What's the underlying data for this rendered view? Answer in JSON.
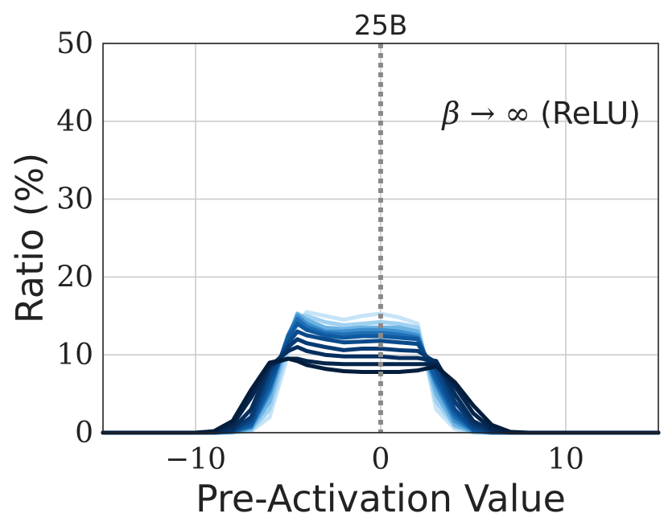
{
  "chart_data": {
    "type": "line",
    "title": "25B",
    "xlabel": "Pre-Activation Value",
    "ylabel": "Ratio (%)",
    "xlim": [
      -15,
      15
    ],
    "ylim": [
      0,
      50
    ],
    "xticks": [
      -10,
      0,
      10
    ],
    "yticks": [
      0,
      10,
      20,
      30,
      40,
      50
    ],
    "xtick_labels": [
      "−10",
      "0",
      "10"
    ],
    "ytick_labels": [
      "0",
      "10",
      "20",
      "30",
      "40",
      "50"
    ],
    "grid": true,
    "vline": {
      "x": 0,
      "style": "dotted",
      "color": "#8a8a8a"
    },
    "annotation": {
      "math": "β → ∞",
      "text": " (ReLU)"
    },
    "colors": [
      "#c6e4f7",
      "#9fd0f0",
      "#6cb3e3",
      "#3f90d0",
      "#2170b5",
      "#0f5aa0",
      "#0b4a8a",
      "#083b73",
      "#062f5e",
      "#05254c",
      "#041d3d"
    ],
    "x": [
      -15,
      -12,
      -10,
      -9,
      -8,
      -7,
      -6,
      -5,
      -4.5,
      -4,
      -3,
      -2,
      -1,
      0,
      1,
      2,
      3,
      4,
      5,
      6,
      7,
      8,
      9,
      10,
      12,
      15
    ],
    "series": [
      {
        "values": [
          0,
          0,
          0,
          0,
          0,
          0.2,
          2,
          10,
          14,
          15.5,
          15,
          14.5,
          15,
          15.3,
          14.8,
          14,
          3,
          0.5,
          0,
          0,
          0,
          0,
          0,
          0,
          0,
          0
        ]
      },
      {
        "values": [
          0,
          0,
          0,
          0,
          0,
          0.3,
          3,
          11,
          15,
          15,
          14.2,
          13.8,
          14,
          14.2,
          14,
          13.5,
          4,
          0.8,
          0.1,
          0,
          0,
          0,
          0,
          0,
          0,
          0
        ]
      },
      {
        "values": [
          0,
          0,
          0,
          0,
          0.1,
          0.5,
          4,
          12,
          15.3,
          14.5,
          13.5,
          13.3,
          13.5,
          13.5,
          13.5,
          13,
          5,
          1,
          0.1,
          0,
          0,
          0,
          0,
          0,
          0,
          0
        ]
      },
      {
        "values": [
          0,
          0,
          0,
          0,
          0.1,
          0.7,
          5,
          12.5,
          15,
          14,
          13,
          13,
          13.2,
          13.2,
          13,
          12.5,
          6,
          1.5,
          0.2,
          0,
          0,
          0,
          0,
          0,
          0,
          0
        ]
      },
      {
        "values": [
          0,
          0,
          0,
          0,
          0.1,
          0.8,
          5.5,
          12.5,
          14.6,
          13.6,
          12.8,
          12.6,
          12.8,
          12.8,
          12.6,
          12.2,
          6.5,
          2,
          0.3,
          0,
          0,
          0,
          0,
          0,
          0,
          0
        ]
      },
      {
        "values": [
          0,
          0,
          0,
          0,
          0.2,
          1,
          6,
          12.2,
          14,
          13.2,
          12.5,
          12.2,
          12.4,
          12.4,
          12.2,
          12,
          7,
          2.5,
          0.4,
          0,
          0,
          0,
          0,
          0,
          0,
          0
        ]
      },
      {
        "values": [
          0,
          0,
          0,
          0,
          0.2,
          1.5,
          7,
          11.5,
          13,
          12.5,
          12,
          11.6,
          11.7,
          11.8,
          11.6,
          11.4,
          8,
          3,
          0.6,
          0.1,
          0,
          0,
          0,
          0,
          0,
          0
        ]
      },
      {
        "values": [
          0,
          0,
          0,
          0,
          0.3,
          2,
          8,
          11,
          12,
          11.5,
          11,
          10.6,
          10.8,
          10.8,
          10.6,
          10.5,
          9,
          4,
          1,
          0.1,
          0,
          0,
          0,
          0,
          0,
          0
        ]
      },
      {
        "values": [
          0,
          0,
          0,
          0,
          0.5,
          3,
          8.5,
          10.5,
          11,
          10.5,
          10,
          9.8,
          9.8,
          9.8,
          9.6,
          9.6,
          9.2,
          5,
          1.5,
          0.3,
          0,
          0,
          0,
          0,
          0,
          0
        ]
      },
      {
        "values": [
          0,
          0,
          0,
          0.1,
          1,
          4.5,
          8.8,
          9.5,
          9.5,
          9.2,
          8.9,
          8.8,
          8.8,
          8.8,
          8.8,
          8.8,
          8.8,
          6,
          2.5,
          0.5,
          0,
          0,
          0,
          0,
          0,
          0
        ]
      },
      {
        "values": [
          0,
          0,
          0,
          0.2,
          1.5,
          5.5,
          9,
          9.5,
          9.2,
          8.7,
          8.2,
          7.9,
          7.8,
          7.8,
          7.8,
          8,
          8.5,
          6.5,
          3.5,
          1,
          0.1,
          0,
          0,
          0,
          0,
          0
        ]
      }
    ]
  }
}
